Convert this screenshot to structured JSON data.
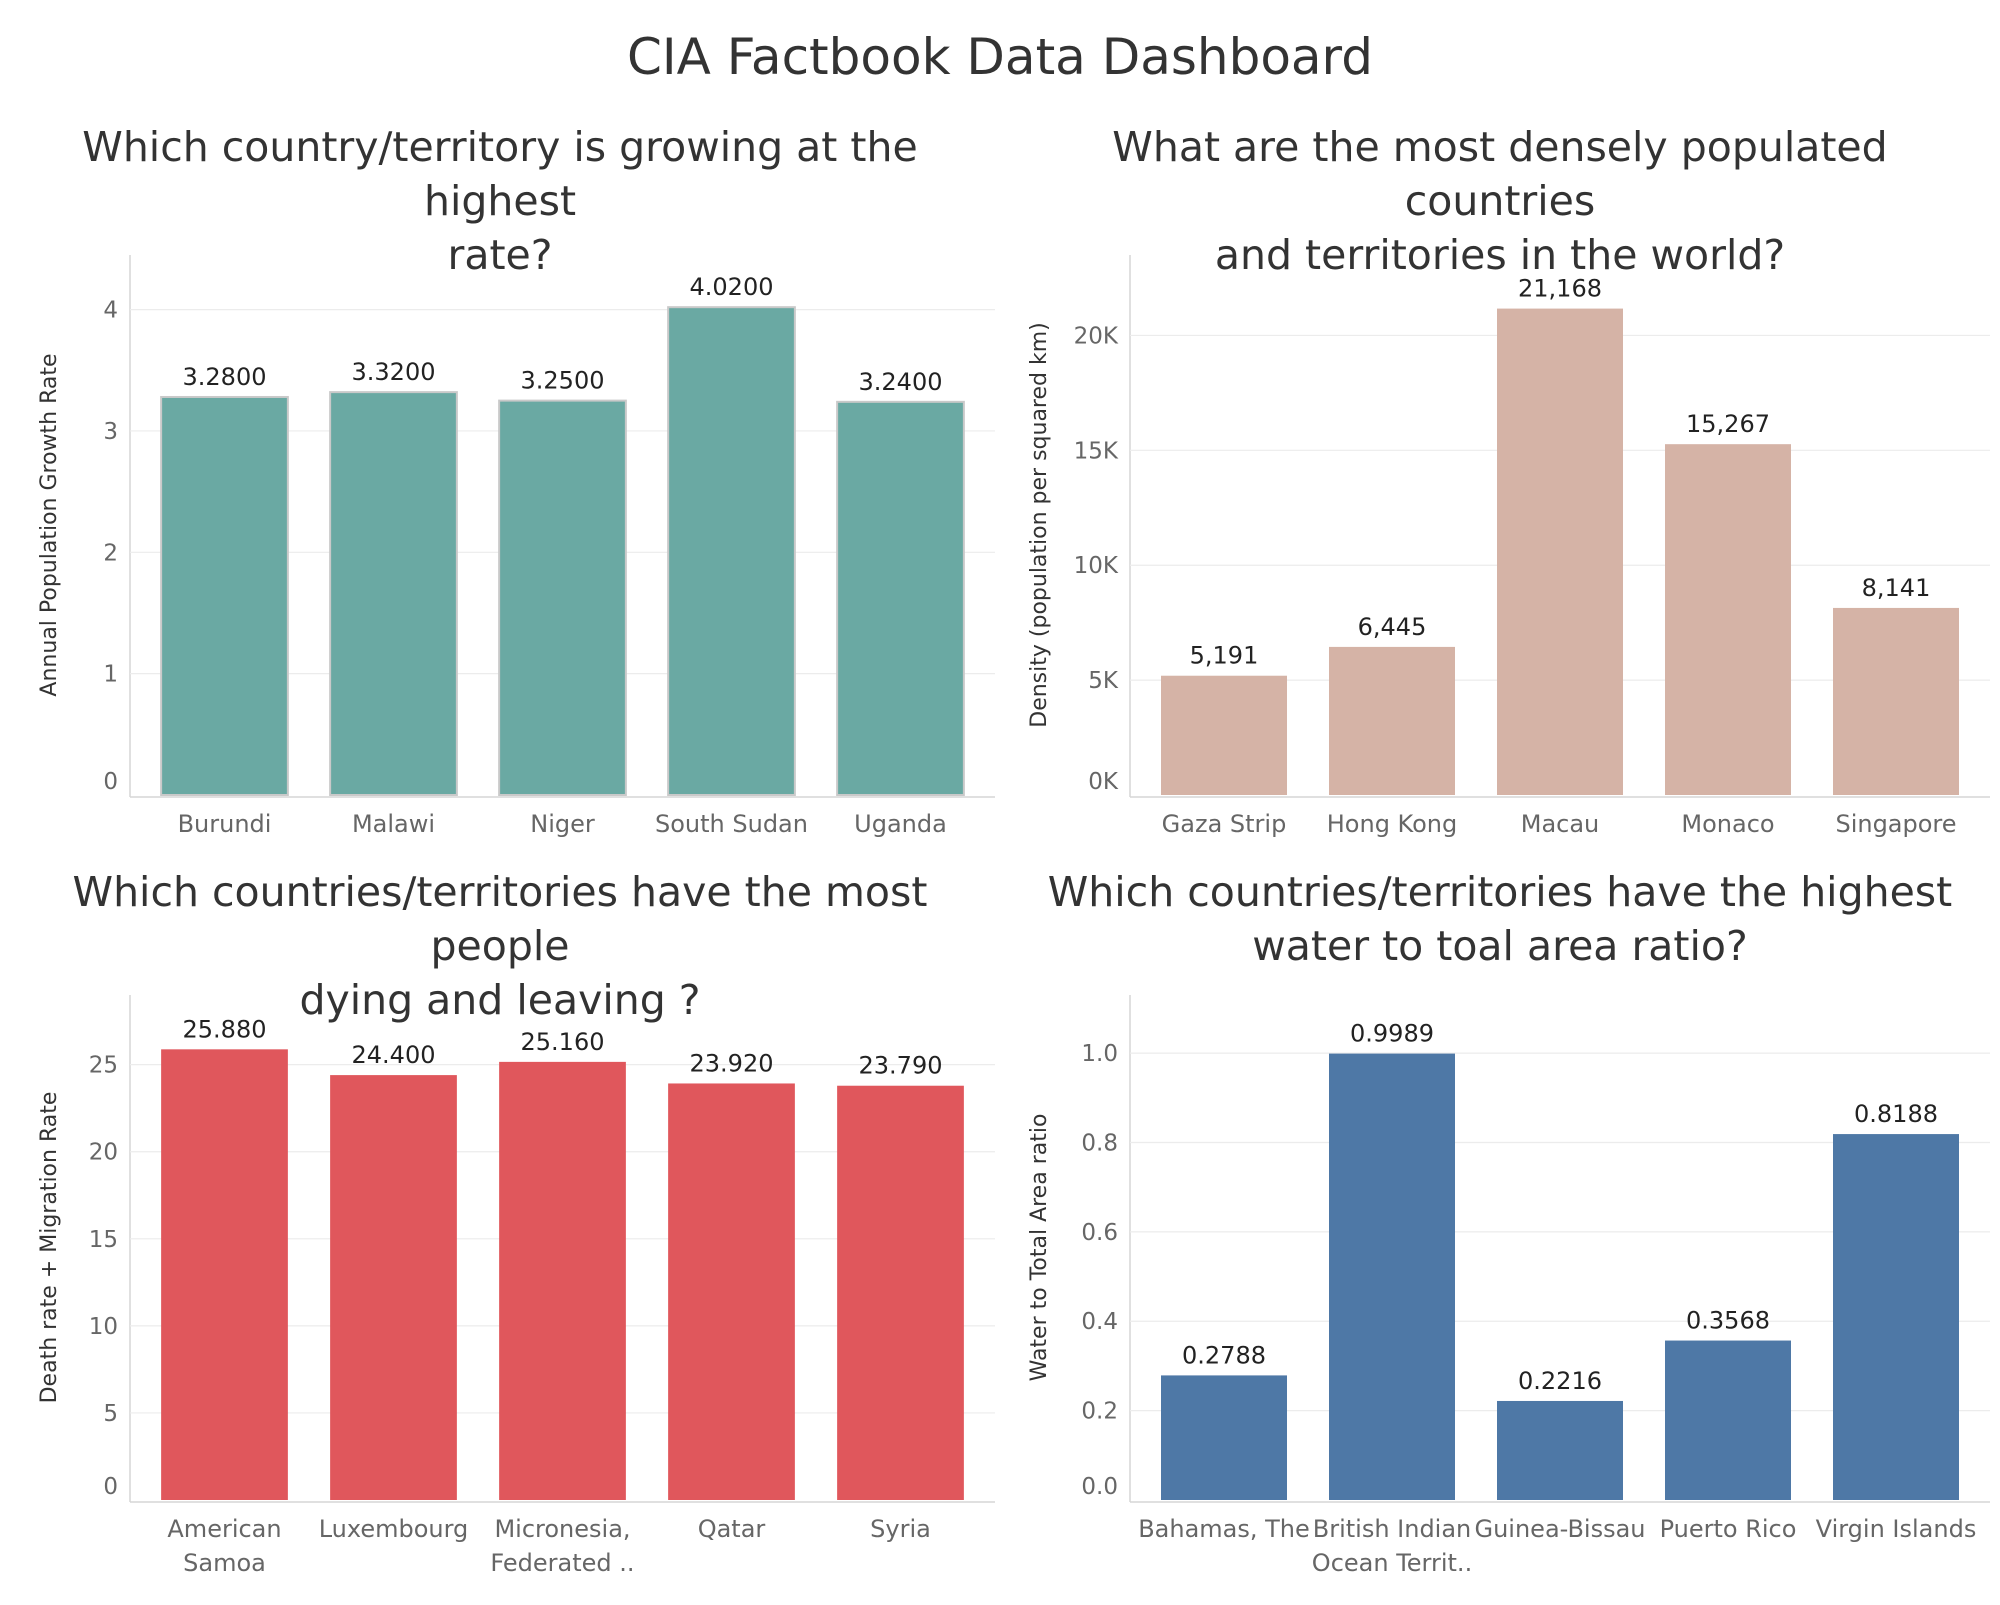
{
  "dashboard": {
    "title": "CIA Factbook Data Dashboard"
  },
  "panels": [
    {
      "title_lines": [
        "Which country/territory is growing at the highest",
        "rate?"
      ]
    },
    {
      "title_lines": [
        "What are the most densely populated countries",
        "and territories in the world?"
      ]
    },
    {
      "title_lines": [
        "Which countries/territories have the most people",
        "dying and leaving ?"
      ]
    },
    {
      "title_lines": [
        "Which countries/territories have the highest",
        "water to toal area ratio?"
      ]
    }
  ],
  "chart_data": [
    {
      "type": "bar",
      "categories": [
        [
          "Burundi"
        ],
        [
          "Malawi"
        ],
        [
          "Niger"
        ],
        [
          "South Sudan"
        ],
        [
          "Uganda"
        ]
      ],
      "values": [
        3.28,
        3.32,
        3.25,
        4.02,
        3.24
      ],
      "value_labels": [
        "3.2800",
        "3.3200",
        "3.2500",
        "4.0200",
        "3.2400"
      ],
      "ylabel": "Annual Population Growth Rate",
      "ylim": [
        0,
        4.45
      ],
      "yticks": [
        0,
        1,
        2,
        3,
        4
      ],
      "ytick_labels": [
        "0",
        "1",
        "2",
        "3",
        "4"
      ],
      "color": "#6aa9a3",
      "bar_outline": "#c9c9c9",
      "grid": true
    },
    {
      "type": "bar",
      "categories": [
        [
          "Gaza Strip"
        ],
        [
          "Hong Kong"
        ],
        [
          "Macau"
        ],
        [
          "Monaco"
        ],
        [
          "Singapore"
        ]
      ],
      "values": [
        5191,
        6445,
        21168,
        15267,
        8141
      ],
      "value_labels": [
        "5,191",
        "6,445",
        "21,168",
        "15,267",
        "8,141"
      ],
      "ylabel": "Density (population per squared km)",
      "ylim": [
        0,
        23500
      ],
      "yticks": [
        0,
        5000,
        10000,
        15000,
        20000
      ],
      "ytick_labels": [
        "0K",
        "5K",
        "10K",
        "15K",
        "20K"
      ],
      "color": "#d5b3a6",
      "grid": true
    },
    {
      "type": "bar",
      "categories": [
        [
          "American",
          "Samoa"
        ],
        [
          "Luxembourg"
        ],
        [
          "Micronesia,",
          "Federated .."
        ],
        [
          "Qatar"
        ],
        [
          "Syria"
        ]
      ],
      "values": [
        25.88,
        24.4,
        25.16,
        23.92,
        23.79
      ],
      "value_labels": [
        "25.880",
        "24.400",
        "25.160",
        "23.920",
        "23.790"
      ],
      "ylabel": "Death rate + Migration Rate",
      "ylim": [
        0,
        29
      ],
      "yticks": [
        0,
        5,
        10,
        15,
        20,
        25
      ],
      "ytick_labels": [
        "0",
        "5",
        "10",
        "15",
        "20",
        "25"
      ],
      "color": "#e0575c",
      "grid": true
    },
    {
      "type": "bar",
      "categories": [
        [
          "Bahamas, The"
        ],
        [
          "British Indian",
          "Ocean Territ.."
        ],
        [
          "Guinea-Bissau"
        ],
        [
          "Puerto Rico"
        ],
        [
          "Virgin Islands"
        ]
      ],
      "values": [
        0.2788,
        0.9989,
        0.2216,
        0.3568,
        0.8188
      ],
      "value_labels": [
        "0.2788",
        "0.9989",
        "0.2216",
        "0.3568",
        "0.8188"
      ],
      "ylabel": "Water to Total Area ratio",
      "ylim": [
        0,
        1.13
      ],
      "yticks": [
        0,
        0.2,
        0.4,
        0.6,
        0.8,
        1.0
      ],
      "ytick_labels": [
        "0.0",
        "0.2",
        "0.4",
        "0.6",
        "0.8",
        "1.0"
      ],
      "color": "#4e78a6",
      "grid": true
    }
  ]
}
